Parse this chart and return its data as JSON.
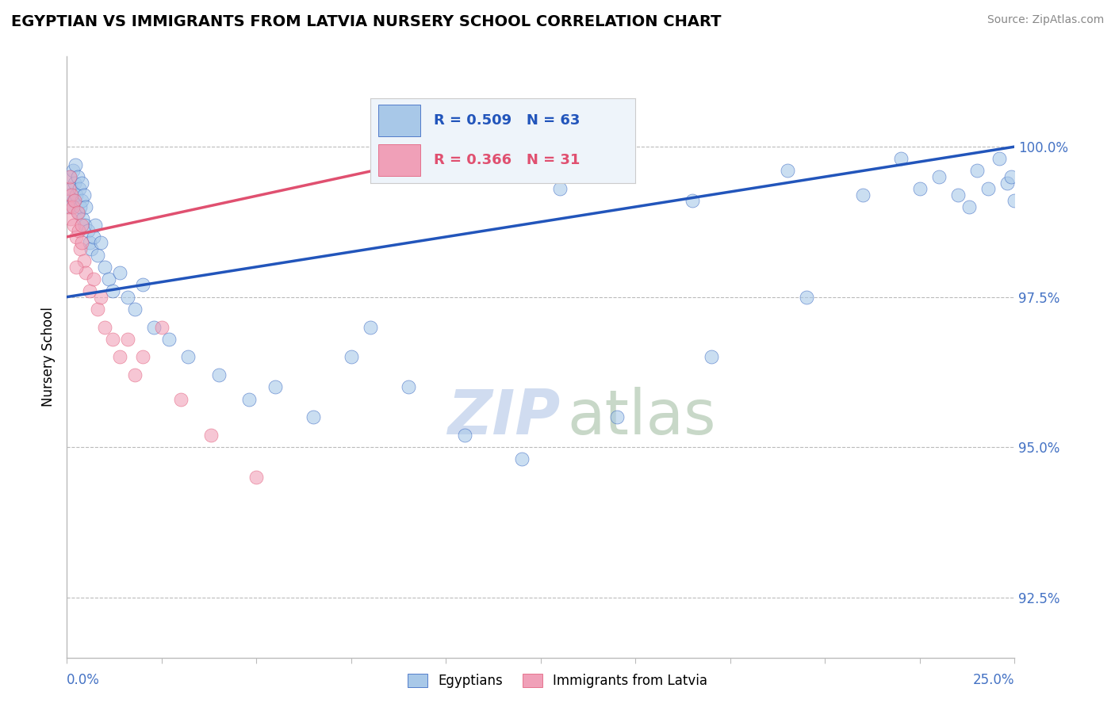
{
  "title": "EGYPTIAN VS IMMIGRANTS FROM LATVIA NURSERY SCHOOL CORRELATION CHART",
  "source": "Source: ZipAtlas.com",
  "ylabel": "Nursery School",
  "yticks": [
    92.5,
    95.0,
    97.5,
    100.0
  ],
  "ytick_labels": [
    "92.5%",
    "95.0%",
    "97.5%",
    "100.0%"
  ],
  "xlim": [
    0.0,
    25.0
  ],
  "ylim": [
    91.5,
    101.5
  ],
  "blue_R": 0.509,
  "blue_N": 63,
  "pink_R": 0.366,
  "pink_N": 31,
  "blue_color": "#A8C8E8",
  "pink_color": "#F0A0B8",
  "blue_line_color": "#2255BB",
  "pink_line_color": "#E05070",
  "legend_box_color": "#EEF4FA",
  "watermark_color": "#D0DCF0",
  "blue_x": [
    0.05,
    0.08,
    0.1,
    0.12,
    0.15,
    0.18,
    0.2,
    0.22,
    0.25,
    0.28,
    0.3,
    0.32,
    0.35,
    0.38,
    0.4,
    0.42,
    0.45,
    0.48,
    0.5,
    0.55,
    0.6,
    0.65,
    0.7,
    0.75,
    0.8,
    0.9,
    1.0,
    1.1,
    1.2,
    1.4,
    1.6,
    1.8,
    2.0,
    2.3,
    2.7,
    3.2,
    4.0,
    4.8,
    5.5,
    6.5,
    7.5,
    9.0,
    10.5,
    12.0,
    14.5,
    17.0,
    19.5,
    22.0,
    23.0,
    23.5,
    24.0,
    24.3,
    24.6,
    24.8,
    25.0,
    24.9,
    23.8,
    22.5,
    21.0,
    19.0,
    16.5,
    13.0,
    8.0
  ],
  "blue_y": [
    99.2,
    99.5,
    99.0,
    99.3,
    99.6,
    99.1,
    99.4,
    99.7,
    99.2,
    99.5,
    98.9,
    99.3,
    99.0,
    99.4,
    99.1,
    98.8,
    99.2,
    98.7,
    99.0,
    98.6,
    98.4,
    98.3,
    98.5,
    98.7,
    98.2,
    98.4,
    98.0,
    97.8,
    97.6,
    97.9,
    97.5,
    97.3,
    97.7,
    97.0,
    96.8,
    96.5,
    96.2,
    95.8,
    96.0,
    95.5,
    96.5,
    96.0,
    95.2,
    94.8,
    95.5,
    96.5,
    97.5,
    99.8,
    99.5,
    99.2,
    99.6,
    99.3,
    99.8,
    99.4,
    99.1,
    99.5,
    99.0,
    99.3,
    99.2,
    99.6,
    99.1,
    99.3,
    97.0
  ],
  "pink_x": [
    0.03,
    0.05,
    0.08,
    0.1,
    0.12,
    0.15,
    0.18,
    0.2,
    0.25,
    0.28,
    0.3,
    0.35,
    0.38,
    0.4,
    0.45,
    0.5,
    0.6,
    0.7,
    0.8,
    0.9,
    1.0,
    1.2,
    1.4,
    1.6,
    1.8,
    2.0,
    2.5,
    3.0,
    3.8,
    5.0,
    0.25
  ],
  "pink_y": [
    99.0,
    99.3,
    99.5,
    98.8,
    99.2,
    99.0,
    98.7,
    99.1,
    98.5,
    98.9,
    98.6,
    98.3,
    98.7,
    98.4,
    98.1,
    97.9,
    97.6,
    97.8,
    97.3,
    97.5,
    97.0,
    96.8,
    96.5,
    96.8,
    96.2,
    96.5,
    97.0,
    95.8,
    95.2,
    94.5,
    98.0
  ],
  "blue_trend_x0": 0.0,
  "blue_trend_y0": 97.5,
  "blue_trend_x1": 25.0,
  "blue_trend_y1": 100.0,
  "pink_trend_x0": 0.0,
  "pink_trend_y0": 98.5,
  "pink_trend_x1": 11.0,
  "pink_trend_y1": 100.0
}
